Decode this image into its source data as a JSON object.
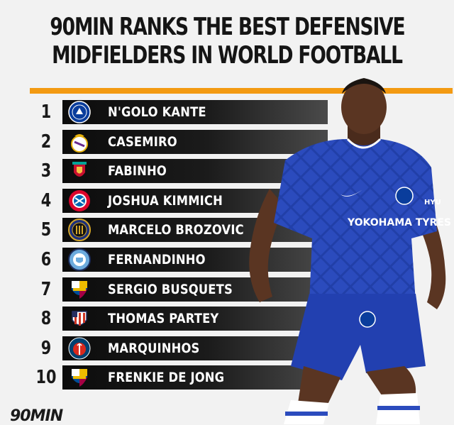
{
  "title": {
    "line1": "90MIN RANKS THE BEST DEFENSIVE",
    "line2": "MIDFIELDERS IN WORLD FOOTBALL"
  },
  "colors": {
    "accent": "#f39a12",
    "bar": "#141414",
    "background": "#f2f2f2"
  },
  "ranking": [
    {
      "rank": "1",
      "name": "N'GOLO KANTE",
      "club_icon": "chelsea-badge-icon"
    },
    {
      "rank": "2",
      "name": "CASEMIRO",
      "club_icon": "real-madrid-badge-icon"
    },
    {
      "rank": "3",
      "name": "FABINHO",
      "club_icon": "liverpool-badge-icon"
    },
    {
      "rank": "4",
      "name": "JOSHUA KIMMICH",
      "club_icon": "bayern-badge-icon"
    },
    {
      "rank": "5",
      "name": "MARCELO BROZOVIC",
      "club_icon": "inter-badge-icon"
    },
    {
      "rank": "6",
      "name": "FERNANDINHO",
      "club_icon": "man-city-badge-icon"
    },
    {
      "rank": "7",
      "name": "SERGIO BUSQUETS",
      "club_icon": "barcelona-badge-icon"
    },
    {
      "rank": "8",
      "name": "THOMAS PARTEY",
      "club_icon": "atletico-badge-icon"
    },
    {
      "rank": "9",
      "name": "MARQUINHOS",
      "club_icon": "psg-badge-icon"
    },
    {
      "rank": "10",
      "name": "FRENKIE DE JONG",
      "club_icon": "barcelona-badge-icon"
    }
  ],
  "player_photo": {
    "shirt_sponsor": "YOKOHAMA TYRES",
    "shirt_text_right": "HYU"
  },
  "logo": "90MIN"
}
